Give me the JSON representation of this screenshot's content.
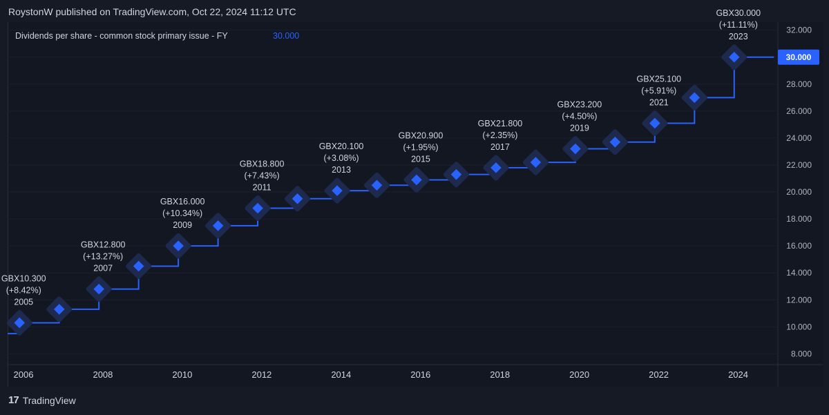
{
  "header": {
    "text": "RoystonW published on TradingView.com, Oct 22, 2024 11:12 UTC"
  },
  "footer": {
    "brand": "TradingView",
    "logo_mark": "17"
  },
  "colors": {
    "line": "#2962ff",
    "marker": "#2962ff",
    "halo": "#1e2a4d",
    "price_tag": "#2962ff"
  },
  "chart_data": {
    "type": "line",
    "title": "Dividends per share - common stock primary issue - FY",
    "current_value": "30.000",
    "y_ticks": [
      "8.000",
      "10.000",
      "12.000",
      "14.000",
      "16.000",
      "18.000",
      "20.000",
      "22.000",
      "24.000",
      "26.000",
      "28.000",
      "30.000",
      "32.000"
    ],
    "y_tick_values": [
      8,
      10,
      12,
      14,
      16,
      18,
      20,
      22,
      24,
      26,
      28,
      30,
      32
    ],
    "ylim": [
      7.2,
      32.6
    ],
    "x_ticks": [
      "2006",
      "2008",
      "2010",
      "2012",
      "2014",
      "2016",
      "2018",
      "2020",
      "2022",
      "2024"
    ],
    "x_tick_values": [
      2006,
      2008,
      2010,
      2012,
      2014,
      2016,
      2018,
      2020,
      2022,
      2024
    ],
    "xlim": [
      2005.6,
      2025.0
    ],
    "step_start": {
      "x": 2005.6,
      "y": 9.5
    },
    "points": [
      {
        "year": 2005,
        "x": 2005.9,
        "y": 10.3
      },
      {
        "year": 2006,
        "x": 2006.9,
        "y": 11.3
      },
      {
        "year": 2007,
        "x": 2007.9,
        "y": 12.8
      },
      {
        "year": 2008,
        "x": 2008.9,
        "y": 14.5
      },
      {
        "year": 2009,
        "x": 2009.9,
        "y": 16.0
      },
      {
        "year": 2010,
        "x": 2010.9,
        "y": 17.5
      },
      {
        "year": 2011,
        "x": 2011.9,
        "y": 18.8
      },
      {
        "year": 2012,
        "x": 2012.9,
        "y": 19.5
      },
      {
        "year": 2013,
        "x": 2013.9,
        "y": 20.1
      },
      {
        "year": 2014,
        "x": 2014.9,
        "y": 20.5
      },
      {
        "year": 2015,
        "x": 2015.9,
        "y": 20.9
      },
      {
        "year": 2016,
        "x": 2016.9,
        "y": 21.3
      },
      {
        "year": 2017,
        "x": 2017.9,
        "y": 21.8
      },
      {
        "year": 2018,
        "x": 2018.9,
        "y": 22.2
      },
      {
        "year": 2019,
        "x": 2019.9,
        "y": 23.2
      },
      {
        "year": 2020,
        "x": 2020.9,
        "y": 23.7
      },
      {
        "year": 2021,
        "x": 2021.9,
        "y": 25.1
      },
      {
        "year": 2022,
        "x": 2022.9,
        "y": 27.0
      },
      {
        "year": 2023,
        "x": 2023.9,
        "y": 30.0
      }
    ],
    "line_end_x": 2024.9,
    "annotations": [
      {
        "year": 2005,
        "value": "GBX10.300",
        "change": "(+8.42%)",
        "label": "2005"
      },
      {
        "year": 2007,
        "value": "GBX12.800",
        "change": "(+13.27%)",
        "label": "2007"
      },
      {
        "year": 2009,
        "value": "GBX16.000",
        "change": "(+10.34%)",
        "label": "2009"
      },
      {
        "year": 2011,
        "value": "GBX18.800",
        "change": "(+7.43%)",
        "label": "2011"
      },
      {
        "year": 2013,
        "value": "GBX20.100",
        "change": "(+3.08%)",
        "label": "2013"
      },
      {
        "year": 2015,
        "value": "GBX20.900",
        "change": "(+1.95%)",
        "label": "2015"
      },
      {
        "year": 2017,
        "value": "GBX21.800",
        "change": "(+2.35%)",
        "label": "2017"
      },
      {
        "year": 2019,
        "value": "GBX23.200",
        "change": "(+4.50%)",
        "label": "2019"
      },
      {
        "year": 2021,
        "value": "GBX25.100",
        "change": "(+5.91%)",
        "label": "2021"
      },
      {
        "year": 2023,
        "value": "GBX30.000",
        "change": "(+11.11%)",
        "label": "2023"
      }
    ],
    "grid": true
  }
}
